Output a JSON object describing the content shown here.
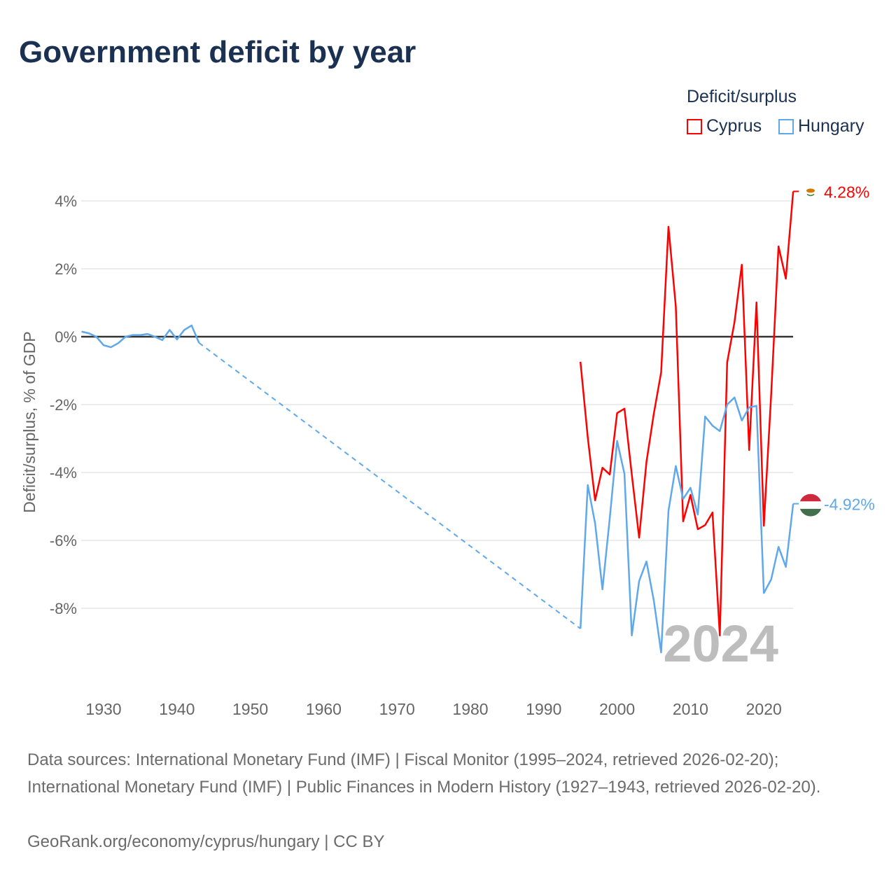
{
  "chart_data": {
    "type": "line",
    "title": "Government deficit by year",
    "ylabel": "Deficit/surplus, % of GDP",
    "xlabel": "",
    "xlim": [
      1927,
      2024
    ],
    "ylim": [
      -10.5,
      5
    ],
    "xticks": [
      1930,
      1940,
      1950,
      1960,
      1970,
      1980,
      1990,
      2000,
      2010,
      2020
    ],
    "yticks": [
      4,
      2,
      0,
      -2,
      -4,
      -6,
      -8
    ],
    "ytick_labels": [
      "4%",
      "2%",
      "0%",
      "-2%",
      "-4%",
      "-6%",
      "-8%"
    ],
    "grid": true,
    "legend_title": "Deficit/surplus",
    "legend_position": "top-right",
    "year_watermark": "2024",
    "series": [
      {
        "name": "Cyprus",
        "color": "#ff0000",
        "end_label": "4.28%",
        "x": [
          1995,
          1996,
          1997,
          1998,
          1999,
          2000,
          2001,
          2002,
          2003,
          2004,
          2005,
          2006,
          2007,
          2008,
          2009,
          2010,
          2011,
          2012,
          2013,
          2014,
          2015,
          2016,
          2017,
          2018,
          2019,
          2020,
          2021,
          2022,
          2023,
          2024
        ],
        "values": [
          -0.74,
          -2.97,
          -4.82,
          -3.86,
          -4.06,
          -2.25,
          -2.12,
          -4.06,
          -5.92,
          -3.69,
          -2.27,
          -1.05,
          3.24,
          0.89,
          -5.44,
          -4.66,
          -5.67,
          -5.55,
          -5.18,
          -8.8,
          -0.76,
          0.43,
          2.12,
          -3.34,
          1.01,
          -5.57,
          -1.7,
          2.66,
          1.71,
          4.28
        ]
      },
      {
        "name": "Hungary",
        "color": "#5fa8ea",
        "end_label": "-4.92%",
        "x": [
          1927,
          1928,
          1929,
          1930,
          1931,
          1932,
          1933,
          1934,
          1935,
          1936,
          1937,
          1938,
          1939,
          1940,
          1941,
          1942,
          1943,
          1995,
          1996,
          1997,
          1998,
          1999,
          2000,
          2001,
          2002,
          2003,
          2004,
          2005,
          2006,
          2007,
          2008,
          2009,
          2010,
          2011,
          2012,
          2013,
          2014,
          2015,
          2016,
          2017,
          2018,
          2019,
          2020,
          2021,
          2022,
          2023,
          2024
        ],
        "values": [
          0.15,
          0.1,
          0.0,
          -0.25,
          -0.31,
          -0.19,
          0.0,
          0.05,
          0.05,
          0.08,
          0.0,
          -0.1,
          0.2,
          -0.08,
          0.2,
          0.33,
          -0.18,
          -8.6,
          -4.37,
          -5.5,
          -7.44,
          -5.34,
          -3.07,
          -4.04,
          -8.8,
          -7.2,
          -6.62,
          -7.77,
          -9.3,
          -5.13,
          -3.81,
          -4.78,
          -4.45,
          -5.24,
          -2.35,
          -2.62,
          -2.78,
          -2.0,
          -1.79,
          -2.47,
          -2.08,
          -2.04,
          -7.55,
          -7.15,
          -6.19,
          -6.78,
          -4.92
        ]
      }
    ]
  },
  "footer": {
    "sources": "Data sources: International Monetary Fund (IMF) | Fiscal Monitor (1995–2024, retrieved 2026-02-20); International Monetary Fund (IMF) | Public Finances in Modern History (1927–1943, retrieved 2026-02-20).",
    "credit": "GeoRank.org/economy/cyprus/hungary | CC BY"
  }
}
